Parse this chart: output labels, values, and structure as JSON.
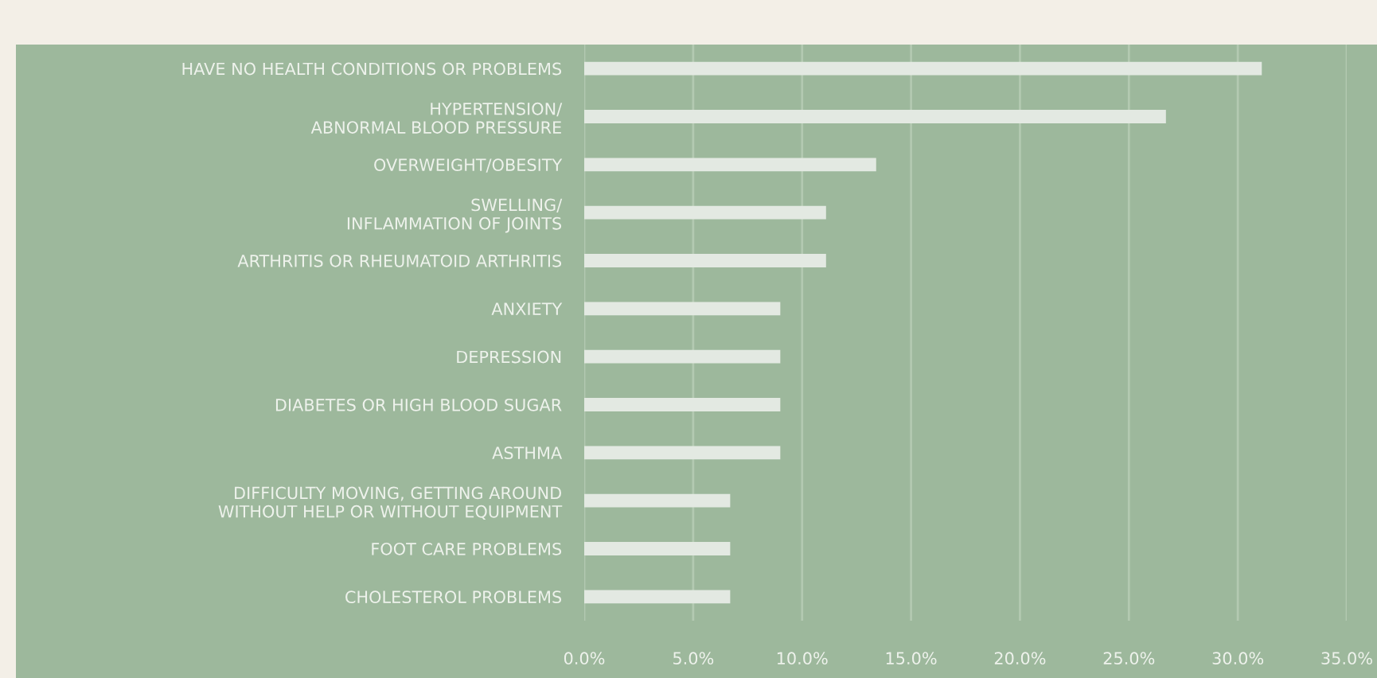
{
  "chart_data": {
    "type": "bar",
    "orientation": "horizontal",
    "categories": [
      "HAVE NO HEALTH CONDITIONS OR PROBLEMS",
      "HYPERTENSION/\nABNORMAL BLOOD PRESSURE",
      "OVERWEIGHT/OBESITY",
      "SWELLING/\nINFLAMMATION OF JOINTS",
      "ARTHRITIS OR RHEUMATOID ARTHRITIS",
      "ANXIETY",
      "DEPRESSION",
      "DIABETES OR HIGH BLOOD SUGAR",
      "ASTHMA",
      "DIFFICULTY MOVING, GETTING AROUND\nWITHOUT HELP OR WITHOUT EQUIPMENT",
      "FOOT CARE PROBLEMS",
      "CHOLESTEROL PROBLEMS"
    ],
    "values": [
      31.1,
      26.7,
      13.4,
      11.1,
      11.1,
      9.0,
      9.0,
      9.0,
      9.0,
      6.7,
      6.7,
      6.7
    ],
    "color": "#e3e9e2",
    "xlim": [
      0,
      35
    ],
    "xticks": [
      {
        "value": 0,
        "label": "0.0%"
      },
      {
        "value": 5,
        "label": "5.0%"
      },
      {
        "value": 10,
        "label": "10.0%"
      },
      {
        "value": 15,
        "label": "15.0%"
      },
      {
        "value": 20,
        "label": "20.0%"
      },
      {
        "value": 25,
        "label": "25.0%"
      },
      {
        "value": 30,
        "label": "30.0%"
      },
      {
        "value": 35,
        "label": "35.0%"
      }
    ],
    "grid": "x"
  }
}
